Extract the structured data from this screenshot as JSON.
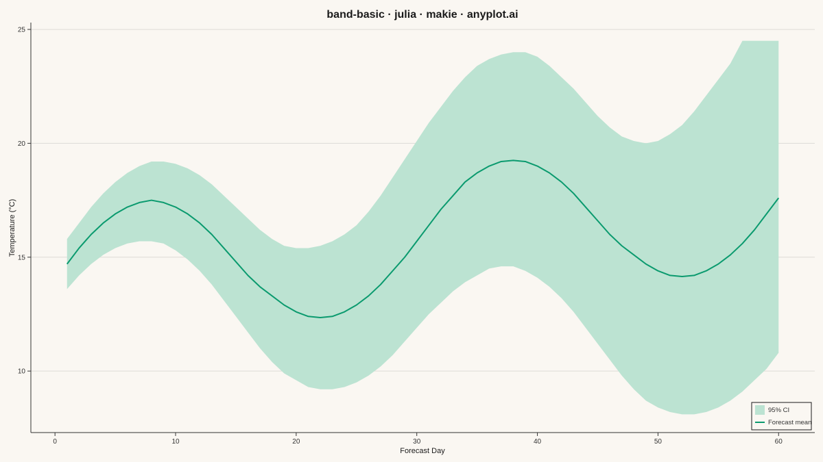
{
  "chart_data": {
    "type": "area",
    "title": "band-basic · julia · makie · anyplot.ai",
    "xlabel": "Forecast Day",
    "ylabel": "Temperature (°C)",
    "xlim": [
      -2,
      63
    ],
    "ylim": [
      7.3,
      25.3
    ],
    "xticks": [
      0,
      10,
      20,
      30,
      40,
      50,
      60
    ],
    "yticks": [
      10,
      15,
      20,
      25
    ],
    "grid": "horizontal",
    "legend_position": "bottom-right",
    "colors": {
      "band": "#bce3d2",
      "line": "#0a9a6e",
      "background": "#faf7f2",
      "grid": "#dddbd6",
      "axis": "#333333"
    },
    "x": [
      1,
      2,
      3,
      4,
      5,
      6,
      7,
      8,
      9,
      10,
      11,
      12,
      13,
      14,
      15,
      16,
      17,
      18,
      19,
      20,
      21,
      22,
      23,
      24,
      25,
      26,
      27,
      28,
      29,
      30,
      31,
      32,
      33,
      34,
      35,
      36,
      37,
      38,
      39,
      40,
      41,
      42,
      43,
      44,
      45,
      46,
      47,
      48,
      49,
      50,
      51,
      52,
      53,
      54,
      55,
      56,
      57,
      58,
      59,
      60
    ],
    "series": [
      {
        "name": "95% CI",
        "type": "band",
        "lower": [
          13.6,
          14.2,
          14.7,
          15.1,
          15.4,
          15.6,
          15.7,
          15.7,
          15.6,
          15.3,
          14.9,
          14.4,
          13.8,
          13.1,
          12.4,
          11.7,
          11.0,
          10.4,
          9.9,
          9.6,
          9.3,
          9.2,
          9.2,
          9.3,
          9.5,
          9.8,
          10.2,
          10.7,
          11.3,
          11.9,
          12.5,
          13.0,
          13.5,
          13.9,
          14.2,
          14.5,
          14.6,
          14.6,
          14.4,
          14.1,
          13.7,
          13.2,
          12.6,
          11.9,
          11.2,
          10.5,
          9.8,
          9.2,
          8.7,
          8.4,
          8.2,
          8.1,
          8.1,
          8.2,
          8.4,
          8.7,
          9.1,
          9.6,
          10.1,
          10.8
        ],
        "upper": [
          15.8,
          16.5,
          17.2,
          17.8,
          18.3,
          18.7,
          19.0,
          19.2,
          19.2,
          19.1,
          18.9,
          18.6,
          18.2,
          17.7,
          17.2,
          16.7,
          16.2,
          15.8,
          15.5,
          15.4,
          15.4,
          15.5,
          15.7,
          16.0,
          16.4,
          17.0,
          17.7,
          18.5,
          19.3,
          20.1,
          20.9,
          21.6,
          22.3,
          22.9,
          23.4,
          23.7,
          23.9,
          24.0,
          24.0,
          23.8,
          23.4,
          22.9,
          22.4,
          21.8,
          21.2,
          20.7,
          20.3,
          20.1,
          20.0,
          20.1,
          20.4,
          20.8,
          21.4,
          22.1,
          22.8,
          23.5,
          24.5,
          24.5,
          24.5,
          24.5
        ]
      },
      {
        "name": "Forecast mean",
        "type": "line",
        "values": [
          14.7,
          15.4,
          16.0,
          16.5,
          16.9,
          17.2,
          17.4,
          17.5,
          17.4,
          17.2,
          16.9,
          16.5,
          16.0,
          15.4,
          14.8,
          14.2,
          13.7,
          13.3,
          12.9,
          12.6,
          12.4,
          12.35,
          12.4,
          12.6,
          12.9,
          13.3,
          13.8,
          14.4,
          15.0,
          15.7,
          16.4,
          17.1,
          17.7,
          18.3,
          18.7,
          19.0,
          19.2,
          19.25,
          19.2,
          19.0,
          18.7,
          18.3,
          17.8,
          17.2,
          16.6,
          16.0,
          15.5,
          15.1,
          14.7,
          14.4,
          14.2,
          14.15,
          14.2,
          14.4,
          14.7,
          15.1,
          15.6,
          16.2,
          16.9,
          17.6
        ]
      }
    ]
  }
}
